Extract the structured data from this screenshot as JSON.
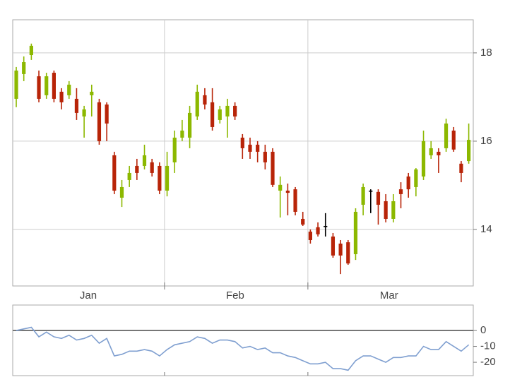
{
  "chart_data": [
    {
      "type": "candlestick",
      "open": [
        16.96,
        17.52,
        17.95,
        17.47,
        17.04,
        17.55,
        17.12,
        17.04,
        16.96,
        16.56,
        17.04,
        16.88,
        16.83,
        15.68,
        14.72,
        15.12,
        15.44,
        15.44,
        15.52,
        15.44,
        14.88,
        15.52,
        16.08,
        16.08,
        16.56,
        17.04,
        16.88,
        16.48,
        16.56,
        16.8,
        16.08,
        15.92,
        15.92,
        15.76,
        15.76,
        14.88,
        14.88,
        14.91,
        14.24,
        13.95,
        14.05,
        14.08,
        13.84,
        13.68,
        13.71,
        13.44,
        14.56,
        14.88,
        14.85,
        14.64,
        14.24,
        14.91,
        15.2,
        14.96,
        15.2,
        15.68,
        15.76,
        15.84,
        16.24,
        15.49,
        15.55
      ],
      "high": [
        17.68,
        17.92,
        18.21,
        17.6,
        17.55,
        17.6,
        17.2,
        17.36,
        17.2,
        16.8,
        17.28,
        16.96,
        16.88,
        15.76,
        15.12,
        15.44,
        15.6,
        15.92,
        15.6,
        15.52,
        15.76,
        16.24,
        16.48,
        16.8,
        17.28,
        17.2,
        17.2,
        16.8,
        16.96,
        16.88,
        16.16,
        16.08,
        16.0,
        15.92,
        15.84,
        15.2,
        15.04,
        14.96,
        14.4,
        14.0,
        14.16,
        14.37,
        13.92,
        13.76,
        13.76,
        14.48,
        15.04,
        14.91,
        14.91,
        14.8,
        14.8,
        15.07,
        15.28,
        15.39,
        16.24,
        16.0,
        15.84,
        16.51,
        16.32,
        15.55,
        16.4
      ],
      "low": [
        16.77,
        17.36,
        17.84,
        16.88,
        16.96,
        16.88,
        16.72,
        16.96,
        16.48,
        16.08,
        16.56,
        15.92,
        16.0,
        14.8,
        14.51,
        14.96,
        15.12,
        15.36,
        15.2,
        14.8,
        14.75,
        15.28,
        16.0,
        15.84,
        16.48,
        16.72,
        16.24,
        16.4,
        16.08,
        16.48,
        15.6,
        15.6,
        15.52,
        15.36,
        14.96,
        14.27,
        14.32,
        14.32,
        14.08,
        13.68,
        13.84,
        13.84,
        13.36,
        12.99,
        13.2,
        13.31,
        14.32,
        14.37,
        14.11,
        14.16,
        14.16,
        14.48,
        14.72,
        14.75,
        15.12,
        15.6,
        15.28,
        15.76,
        15.76,
        15.07,
        15.49
      ],
      "close": [
        17.6,
        17.79,
        18.16,
        16.96,
        17.47,
        16.96,
        16.88,
        17.28,
        16.64,
        16.72,
        17.12,
        16.0,
        16.4,
        14.88,
        14.96,
        15.28,
        15.28,
        15.68,
        15.28,
        14.88,
        15.44,
        16.08,
        16.24,
        16.64,
        17.12,
        16.83,
        16.32,
        16.72,
        16.8,
        16.56,
        15.84,
        15.76,
        15.76,
        15.52,
        15.01,
        15.01,
        14.83,
        14.4,
        14.11,
        13.76,
        13.89,
        14.08,
        13.41,
        13.41,
        13.23,
        14.4,
        14.96,
        14.88,
        14.56,
        14.24,
        14.64,
        14.8,
        14.91,
        15.36,
        16.0,
        15.84,
        15.68,
        16.4,
        15.81,
        15.28,
        16.03
      ],
      "up_color": "#8cb800",
      "down_color": "#b82408",
      "flat_color": "#000000",
      "xlim": [
        -0.47,
        60.6
      ],
      "xticks": [
        {
          "value": 9.55,
          "label": "Jan"
        },
        {
          "value": 29.03,
          "label": "Feb"
        },
        {
          "value": 49.44,
          "label": "Mar"
        }
      ],
      "xgrid": [
        19.66,
        38.67
      ],
      "ylim": [
        12.72,
        18.75
      ],
      "yticks": [
        14,
        16,
        18
      ],
      "grid": true
    },
    {
      "type": "line",
      "values": [
        0,
        1,
        2,
        -4,
        -1,
        -4,
        -5,
        -3,
        -6,
        -5,
        -3,
        -8,
        -5,
        -16,
        -15,
        -13,
        -13,
        -12,
        -13,
        -16,
        -12,
        -9,
        -8,
        -7,
        -4,
        -5,
        -8,
        -6,
        -6,
        -7,
        -11,
        -10,
        -12,
        -11,
        -14,
        -14,
        -16,
        -17,
        -19,
        -21,
        -21,
        -20,
        -24,
        -24,
        -25,
        -19,
        -16,
        -16,
        -18,
        -20,
        -17,
        -17,
        -16,
        -16,
        -10,
        -12,
        -12,
        -7,
        -10,
        -13,
        -9
      ],
      "color": "#7f9fd0",
      "xlim": [
        -0.47,
        60.6
      ],
      "xgrid": [
        19.66,
        38.67
      ],
      "ylim": [
        -28.4,
        16
      ],
      "yticks": [
        0,
        -10,
        -20
      ]
    }
  ]
}
